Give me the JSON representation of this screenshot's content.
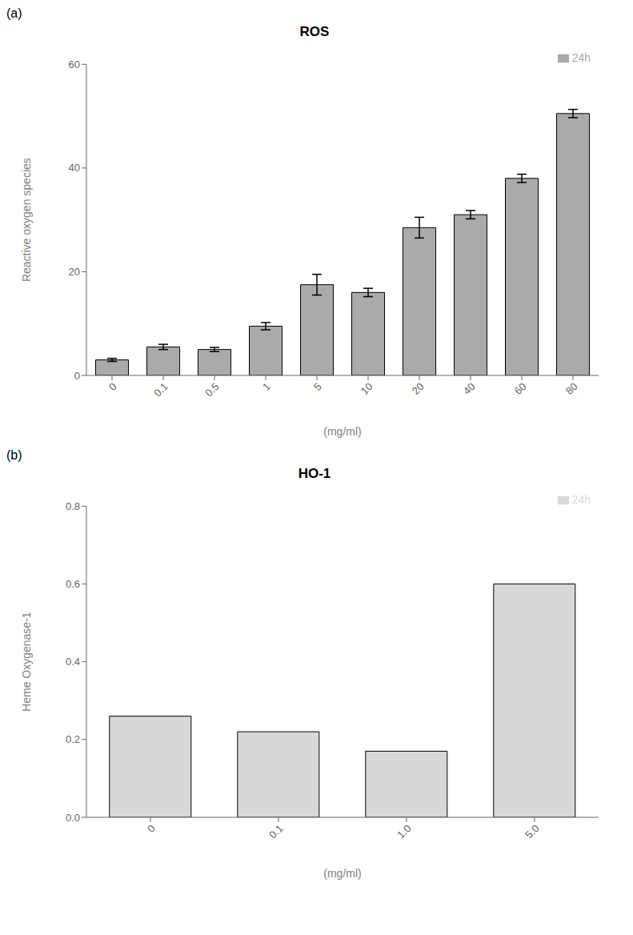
{
  "chart_data": [
    {
      "type": "bar",
      "title": "ROS",
      "annotations": [
        "(a)"
      ],
      "xlabel": "(mg/ml)",
      "ylabel": "Reactive oxygen species",
      "categories": [
        "0",
        "0.1",
        "0.5",
        "1",
        "5",
        "10",
        "20",
        "40",
        "60",
        "80"
      ],
      "series": [
        {
          "name": "24h",
          "color": "#aaaaaa",
          "values": [
            3.0,
            5.5,
            5.0,
            9.5,
            17.5,
            16.0,
            28.5,
            31.0,
            38.0,
            50.5
          ],
          "errors": [
            0.3,
            0.5,
            0.4,
            0.7,
            2.0,
            0.8,
            2.0,
            0.8,
            0.8,
            0.8
          ]
        }
      ],
      "ylim": [
        0,
        60
      ],
      "yticks": [
        0,
        20,
        40,
        60
      ],
      "legend": "upper right",
      "grid": false
    },
    {
      "type": "bar",
      "title": "HO-1",
      "annotations": [
        "(b)"
      ],
      "xlabel": "(mg/ml)",
      "ylabel": "Heme Oxygenase-1",
      "categories": [
        "0",
        "0.1",
        "1.0",
        "5.0"
      ],
      "series": [
        {
          "name": "24h",
          "color": "#d8d8d8",
          "values": [
            0.26,
            0.22,
            0.17,
            0.6
          ]
        }
      ],
      "ylim": [
        0,
        0.8
      ],
      "yticks": [
        {
          "value": 0.0,
          "label": "0.0"
        },
        0.2,
        0.4,
        0.6,
        0.8
      ],
      "legend": "upper right",
      "grid": false
    }
  ]
}
